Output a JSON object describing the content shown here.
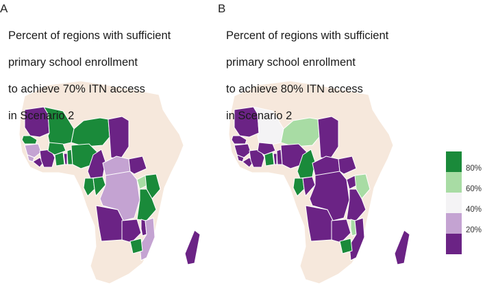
{
  "panels": [
    {
      "letter": "A",
      "title_lines": [
        "Percent of regions with sufficient",
        "primary school enrollment",
        "to achieve 70% ITN access",
        "in Scenario 2"
      ]
    },
    {
      "letter": "B",
      "title_lines": [
        "Percent of regions with sufficient",
        "primary school enrollment",
        "to achieve 80% ITN access",
        "in Scenario 2"
      ]
    }
  ],
  "legend": [
    {
      "label": "80%",
      "color": "#1a8a3a"
    },
    {
      "label": "60%",
      "color": "#a8dca4"
    },
    {
      "label": "40%",
      "color": "#f4f3f5"
    },
    {
      "label": "20%",
      "color": "#c4a3d2"
    },
    {
      "label": "",
      "color": "#6b2385"
    }
  ],
  "colors": {
    "land": "#f6e8dc",
    "border": "#ffffff",
    "cat_80": "#1a8a3a",
    "cat_60": "#a8dca4",
    "cat_40": "#f4f3f5",
    "cat_20": "#c4a3d2",
    "cat_0": "#6b2385"
  },
  "map_regions": {
    "panel_a": {
      "mauritania": "cat_0",
      "mali": "cat_80",
      "niger": "cat_80",
      "chad": "cat_0",
      "senegal": "cat_80",
      "guinea": "cat_20",
      "sierra_leone": "cat_20",
      "liberia": "cat_0",
      "cote_divoire": "cat_0",
      "burkina_faso": "cat_80",
      "ghana": "cat_80",
      "togo": "cat_0",
      "benin": "cat_80",
      "nigeria": "cat_80",
      "cameroon": "cat_0",
      "car": "cat_20",
      "south_sudan": "cat_0",
      "gabon": "cat_80",
      "congo": "cat_80",
      "drc": "cat_20",
      "uganda": "cat_60",
      "kenya": "cat_80",
      "tanzania": "cat_80",
      "angola": "cat_0",
      "zambia": "cat_0",
      "malawi": "cat_0",
      "mozambique": "cat_20",
      "zimbabwe": "cat_80",
      "madagascar": "cat_0"
    },
    "panel_b": {
      "mauritania": "cat_0",
      "mali": "cat_40",
      "niger": "cat_60",
      "chad": "cat_0",
      "senegal": "cat_0",
      "guinea": "cat_0",
      "sierra_leone": "cat_0",
      "liberia": "cat_0",
      "cote_divoire": "cat_0",
      "burkina_faso": "cat_0",
      "ghana": "cat_80",
      "togo": "cat_0",
      "benin": "cat_0",
      "nigeria": "cat_0",
      "cameroon": "cat_80",
      "car": "cat_0",
      "south_sudan": "cat_0",
      "gabon": "cat_80",
      "congo": "cat_0",
      "drc": "cat_0",
      "uganda": "cat_0",
      "kenya": "cat_60",
      "tanzania": "cat_0",
      "angola": "cat_0",
      "zambia": "cat_0",
      "malawi": "cat_60",
      "mozambique": "cat_0",
      "zimbabwe": "cat_80",
      "madagascar": "cat_0"
    }
  }
}
